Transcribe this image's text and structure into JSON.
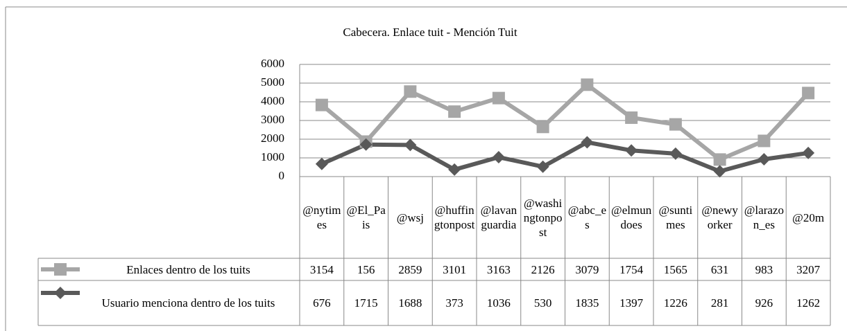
{
  "chart_data": {
    "type": "line",
    "stacked": true,
    "title": "Cabecera. Enlace tuit - Mención Tuit",
    "categories": [
      "@nytimes",
      "@El_Pais",
      "@wsj",
      "@huffingtonpost",
      "@lavanguardia",
      "@washingtonpost",
      "@abc_es",
      "@elmundoes",
      "@suntimes",
      "@newyorker",
      "@larazon_es",
      "@20m"
    ],
    "series": [
      {
        "name": "Enlaces dentro de los tuits",
        "color": "#a6a6a6",
        "marker": "square",
        "values": [
          3154,
          156,
          2859,
          3101,
          3163,
          2126,
          3079,
          1754,
          1565,
          631,
          983,
          3207
        ]
      },
      {
        "name": "Usuario menciona dentro de los tuits",
        "color": "#595959",
        "marker": "diamond",
        "values": [
          676,
          1715,
          1688,
          373,
          1036,
          530,
          1835,
          1397,
          1226,
          281,
          926,
          1262
        ]
      }
    ],
    "ylim": [
      0,
      6000
    ],
    "yticks": [
      0,
      1000,
      2000,
      3000,
      4000,
      5000,
      6000
    ],
    "grid": true
  }
}
